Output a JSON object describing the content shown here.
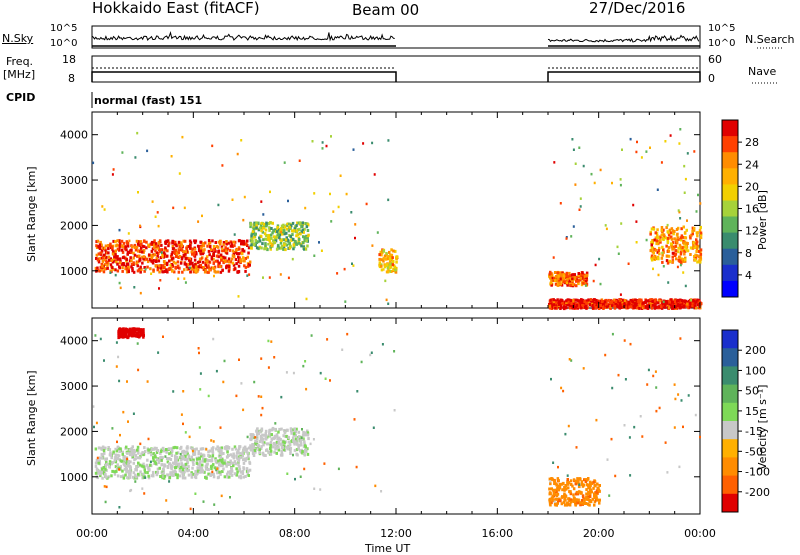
{
  "header": {
    "station": "Hokkaido East (fitACF)",
    "beam": "Beam 00",
    "date": "27/Dec/2016"
  },
  "noise_panel": {
    "left_label": "N.Sky",
    "right_label": "N.Search",
    "left_ticks": [
      "10^5",
      "10^0"
    ],
    "right_ticks": [
      "10^5",
      "10^0"
    ]
  },
  "freq_panel": {
    "left_label_1": "Freq.",
    "left_label_2": "[MHz]",
    "right_label": "Nave",
    "left_ticks": [
      "18",
      "8"
    ],
    "right_ticks": [
      "60",
      "0"
    ]
  },
  "cpid": {
    "label": "CPID",
    "program": "normal (fast) 151"
  },
  "power_panel": {
    "ylabel": "Slant Range [km]",
    "cbar_label": "Power [dB]",
    "cbar_ticks": [
      "28",
      "24",
      "20",
      "16",
      "12",
      "8",
      "4"
    ],
    "cbar_colors": [
      "#e00000",
      "#ff4000",
      "#ff8c00",
      "#ffb000",
      "#f2d000",
      "#a6d23a",
      "#5fb35a",
      "#3a8c6e",
      "#2a5f9a",
      "#1a2fcc",
      "#0000ff"
    ]
  },
  "velocity_panel": {
    "ylabel": "Slant Range [km]",
    "cbar_label": "Velocity [m s⁻¹]",
    "cbar_ticks": [
      "200",
      "100",
      "50",
      "15",
      "-15",
      "-50",
      "-100",
      "-200"
    ],
    "cbar_colors": [
      "#1a2fcc",
      "#2a5f9a",
      "#3a8c6e",
      "#5fb35a",
      "#7ed957",
      "#c8c8c8",
      "#ffb000",
      "#ff8c00",
      "#ff6000",
      "#e00000"
    ]
  },
  "xaxis": {
    "label": "Time UT",
    "ticks": [
      "00:00",
      "04:00",
      "08:00",
      "12:00",
      "16:00",
      "20:00",
      "00:00"
    ]
  },
  "chart_data": {
    "type": "heatmap",
    "x_unit": "hours UT",
    "xlim": [
      0,
      24
    ],
    "ylim": [
      180,
      4500
    ],
    "ylabel": "Slant Range [km]",
    "y_ticks": [
      1000,
      2000,
      3000,
      4000
    ],
    "data_gaps_hours": [
      [
        12,
        18
      ]
    ],
    "power_scatter_bands_dB": [
      {
        "t_start": 0.1,
        "t_end": 6.2,
        "range_low_km": 1000,
        "range_high_km": 1700,
        "power_dB": 26
      },
      {
        "t_start": 6.2,
        "t_end": 8.5,
        "range_low_km": 1500,
        "range_high_km": 2100,
        "power_dB": 14
      },
      {
        "t_start": 11.3,
        "t_end": 12.0,
        "range_low_km": 1000,
        "range_high_km": 1500,
        "power_dB": 20
      },
      {
        "t_start": 18.0,
        "t_end": 19.5,
        "range_low_km": 700,
        "range_high_km": 1000,
        "power_dB": 24
      },
      {
        "t_start": 18.0,
        "t_end": 24.0,
        "range_low_km": 200,
        "range_high_km": 400,
        "power_dB": 28
      },
      {
        "t_start": 22.0,
        "t_end": 24.0,
        "range_low_km": 1200,
        "range_high_km": 2000,
        "power_dB": 22
      }
    ],
    "velocity_scatter_bands_ms": [
      {
        "t_start": 0.1,
        "t_end": 6.2,
        "range_low_km": 1000,
        "range_high_km": 1700,
        "velocity_ms": 0
      },
      {
        "t_start": 6.2,
        "t_end": 8.5,
        "range_low_km": 1500,
        "range_high_km": 2100,
        "velocity_ms": 0
      },
      {
        "t_start": 18.0,
        "t_end": 20.0,
        "range_low_km": 400,
        "range_high_km": 1000,
        "velocity_ms": -60
      },
      {
        "t_start": 1.0,
        "t_end": 2.0,
        "range_low_km": 4100,
        "range_high_km": 4300,
        "velocity_ms": -200
      }
    ]
  }
}
